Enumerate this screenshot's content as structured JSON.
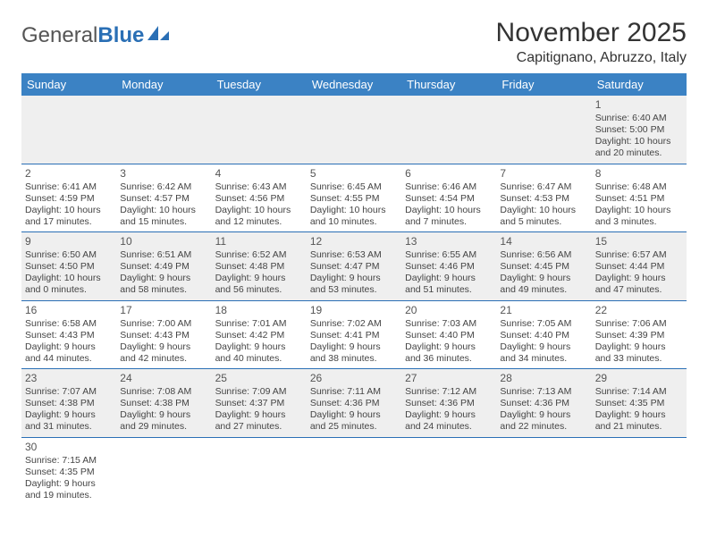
{
  "logo": {
    "general": "General",
    "blue": "Blue"
  },
  "title": "November 2025",
  "location": "Capitignano, Abruzzo, Italy",
  "colors": {
    "header_bg": "#3b82c4",
    "header_text": "#ffffff",
    "row_stripe": "#efefef",
    "row_divider": "#2a6fb5",
    "logo_blue": "#2a6fb5"
  },
  "weekdays": [
    "Sunday",
    "Monday",
    "Tuesday",
    "Wednesday",
    "Thursday",
    "Friday",
    "Saturday"
  ],
  "cells": [
    [
      {
        "day": "",
        "sunrise": "",
        "sunset": "",
        "daylight": ""
      },
      {
        "day": "",
        "sunrise": "",
        "sunset": "",
        "daylight": ""
      },
      {
        "day": "",
        "sunrise": "",
        "sunset": "",
        "daylight": ""
      },
      {
        "day": "",
        "sunrise": "",
        "sunset": "",
        "daylight": ""
      },
      {
        "day": "",
        "sunrise": "",
        "sunset": "",
        "daylight": ""
      },
      {
        "day": "",
        "sunrise": "",
        "sunset": "",
        "daylight": ""
      },
      {
        "day": "1",
        "sunrise": "Sunrise: 6:40 AM",
        "sunset": "Sunset: 5:00 PM",
        "daylight": "Daylight: 10 hours and 20 minutes."
      }
    ],
    [
      {
        "day": "2",
        "sunrise": "Sunrise: 6:41 AM",
        "sunset": "Sunset: 4:59 PM",
        "daylight": "Daylight: 10 hours and 17 minutes."
      },
      {
        "day": "3",
        "sunrise": "Sunrise: 6:42 AM",
        "sunset": "Sunset: 4:57 PM",
        "daylight": "Daylight: 10 hours and 15 minutes."
      },
      {
        "day": "4",
        "sunrise": "Sunrise: 6:43 AM",
        "sunset": "Sunset: 4:56 PM",
        "daylight": "Daylight: 10 hours and 12 minutes."
      },
      {
        "day": "5",
        "sunrise": "Sunrise: 6:45 AM",
        "sunset": "Sunset: 4:55 PM",
        "daylight": "Daylight: 10 hours and 10 minutes."
      },
      {
        "day": "6",
        "sunrise": "Sunrise: 6:46 AM",
        "sunset": "Sunset: 4:54 PM",
        "daylight": "Daylight: 10 hours and 7 minutes."
      },
      {
        "day": "7",
        "sunrise": "Sunrise: 6:47 AM",
        "sunset": "Sunset: 4:53 PM",
        "daylight": "Daylight: 10 hours and 5 minutes."
      },
      {
        "day": "8",
        "sunrise": "Sunrise: 6:48 AM",
        "sunset": "Sunset: 4:51 PM",
        "daylight": "Daylight: 10 hours and 3 minutes."
      }
    ],
    [
      {
        "day": "9",
        "sunrise": "Sunrise: 6:50 AM",
        "sunset": "Sunset: 4:50 PM",
        "daylight": "Daylight: 10 hours and 0 minutes."
      },
      {
        "day": "10",
        "sunrise": "Sunrise: 6:51 AM",
        "sunset": "Sunset: 4:49 PM",
        "daylight": "Daylight: 9 hours and 58 minutes."
      },
      {
        "day": "11",
        "sunrise": "Sunrise: 6:52 AM",
        "sunset": "Sunset: 4:48 PM",
        "daylight": "Daylight: 9 hours and 56 minutes."
      },
      {
        "day": "12",
        "sunrise": "Sunrise: 6:53 AM",
        "sunset": "Sunset: 4:47 PM",
        "daylight": "Daylight: 9 hours and 53 minutes."
      },
      {
        "day": "13",
        "sunrise": "Sunrise: 6:55 AM",
        "sunset": "Sunset: 4:46 PM",
        "daylight": "Daylight: 9 hours and 51 minutes."
      },
      {
        "day": "14",
        "sunrise": "Sunrise: 6:56 AM",
        "sunset": "Sunset: 4:45 PM",
        "daylight": "Daylight: 9 hours and 49 minutes."
      },
      {
        "day": "15",
        "sunrise": "Sunrise: 6:57 AM",
        "sunset": "Sunset: 4:44 PM",
        "daylight": "Daylight: 9 hours and 47 minutes."
      }
    ],
    [
      {
        "day": "16",
        "sunrise": "Sunrise: 6:58 AM",
        "sunset": "Sunset: 4:43 PM",
        "daylight": "Daylight: 9 hours and 44 minutes."
      },
      {
        "day": "17",
        "sunrise": "Sunrise: 7:00 AM",
        "sunset": "Sunset: 4:43 PM",
        "daylight": "Daylight: 9 hours and 42 minutes."
      },
      {
        "day": "18",
        "sunrise": "Sunrise: 7:01 AM",
        "sunset": "Sunset: 4:42 PM",
        "daylight": "Daylight: 9 hours and 40 minutes."
      },
      {
        "day": "19",
        "sunrise": "Sunrise: 7:02 AM",
        "sunset": "Sunset: 4:41 PM",
        "daylight": "Daylight: 9 hours and 38 minutes."
      },
      {
        "day": "20",
        "sunrise": "Sunrise: 7:03 AM",
        "sunset": "Sunset: 4:40 PM",
        "daylight": "Daylight: 9 hours and 36 minutes."
      },
      {
        "day": "21",
        "sunrise": "Sunrise: 7:05 AM",
        "sunset": "Sunset: 4:40 PM",
        "daylight": "Daylight: 9 hours and 34 minutes."
      },
      {
        "day": "22",
        "sunrise": "Sunrise: 7:06 AM",
        "sunset": "Sunset: 4:39 PM",
        "daylight": "Daylight: 9 hours and 33 minutes."
      }
    ],
    [
      {
        "day": "23",
        "sunrise": "Sunrise: 7:07 AM",
        "sunset": "Sunset: 4:38 PM",
        "daylight": "Daylight: 9 hours and 31 minutes."
      },
      {
        "day": "24",
        "sunrise": "Sunrise: 7:08 AM",
        "sunset": "Sunset: 4:38 PM",
        "daylight": "Daylight: 9 hours and 29 minutes."
      },
      {
        "day": "25",
        "sunrise": "Sunrise: 7:09 AM",
        "sunset": "Sunset: 4:37 PM",
        "daylight": "Daylight: 9 hours and 27 minutes."
      },
      {
        "day": "26",
        "sunrise": "Sunrise: 7:11 AM",
        "sunset": "Sunset: 4:36 PM",
        "daylight": "Daylight: 9 hours and 25 minutes."
      },
      {
        "day": "27",
        "sunrise": "Sunrise: 7:12 AM",
        "sunset": "Sunset: 4:36 PM",
        "daylight": "Daylight: 9 hours and 24 minutes."
      },
      {
        "day": "28",
        "sunrise": "Sunrise: 7:13 AM",
        "sunset": "Sunset: 4:36 PM",
        "daylight": "Daylight: 9 hours and 22 minutes."
      },
      {
        "day": "29",
        "sunrise": "Sunrise: 7:14 AM",
        "sunset": "Sunset: 4:35 PM",
        "daylight": "Daylight: 9 hours and 21 minutes."
      }
    ],
    [
      {
        "day": "30",
        "sunrise": "Sunrise: 7:15 AM",
        "sunset": "Sunset: 4:35 PM",
        "daylight": "Daylight: 9 hours and 19 minutes."
      },
      {
        "day": "",
        "sunrise": "",
        "sunset": "",
        "daylight": ""
      },
      {
        "day": "",
        "sunrise": "",
        "sunset": "",
        "daylight": ""
      },
      {
        "day": "",
        "sunrise": "",
        "sunset": "",
        "daylight": ""
      },
      {
        "day": "",
        "sunrise": "",
        "sunset": "",
        "daylight": ""
      },
      {
        "day": "",
        "sunrise": "",
        "sunset": "",
        "daylight": ""
      },
      {
        "day": "",
        "sunrise": "",
        "sunset": "",
        "daylight": ""
      }
    ]
  ]
}
